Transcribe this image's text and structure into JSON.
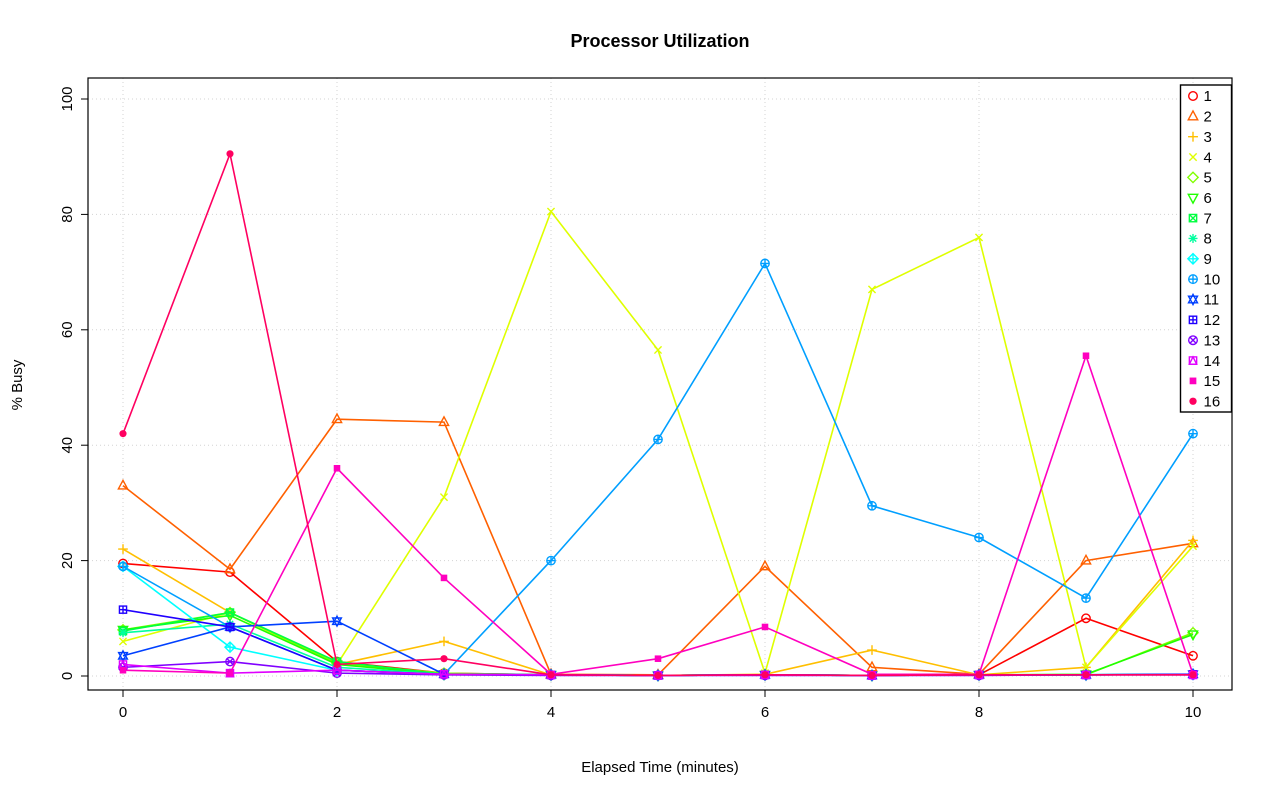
{
  "page": {
    "background": "#FFFFFF"
  },
  "chart_data": {
    "type": "line",
    "title": "Processor Utilization",
    "xlabel": "Elapsed Time (minutes)",
    "ylabel": "% Busy",
    "x": [
      0,
      1,
      2,
      3,
      4,
      5,
      6,
      7,
      8,
      9,
      10
    ],
    "xticks": [
      0,
      2,
      4,
      6,
      8,
      10
    ],
    "yticks": [
      0,
      20,
      40,
      60,
      80,
      100
    ],
    "xlim": [
      0,
      10
    ],
    "ylim": [
      0,
      100
    ],
    "grid": true,
    "grid_color": "#D3D3D3",
    "legend_position": "top-right",
    "legend_labels": [
      "1",
      "2",
      "3",
      "4",
      "5",
      "6",
      "7",
      "8",
      "9",
      "10",
      "11",
      "12",
      "13",
      "14",
      "15",
      "16"
    ],
    "series": [
      {
        "name": "1",
        "color": "#FF0000",
        "marker": "circle-open",
        "values": [
          19.5,
          18,
          2.5,
          0.5,
          0.2,
          0.1,
          0.2,
          0.1,
          0.2,
          10,
          3.5
        ]
      },
      {
        "name": "2",
        "color": "#FF6000",
        "marker": "triangle-up-open",
        "values": [
          33,
          18.5,
          44.5,
          44,
          0.3,
          0.2,
          19,
          1.5,
          0.3,
          20,
          23
        ]
      },
      {
        "name": "3",
        "color": "#FFBF00",
        "marker": "plus",
        "values": [
          22,
          11,
          2,
          6,
          0.2,
          0.1,
          0.3,
          4.5,
          0.2,
          1.5,
          23.5
        ]
      },
      {
        "name": "4",
        "color": "#DFFF00",
        "marker": "x",
        "values": [
          6,
          11,
          2,
          31,
          80.5,
          56.5,
          0.5,
          67,
          76,
          1.5,
          22.5
        ]
      },
      {
        "name": "5",
        "color": "#80FF00",
        "marker": "diamond-open",
        "values": [
          8,
          11,
          2.2,
          0.5,
          0.2,
          0.1,
          0.2,
          0.1,
          0.2,
          0.2,
          7.5
        ]
      },
      {
        "name": "6",
        "color": "#20FF00",
        "marker": "triangle-down-open",
        "values": [
          8,
          10.5,
          2,
          0.3,
          0.2,
          0.1,
          0.2,
          0.1,
          0.2,
          0.3,
          7.2
        ]
      },
      {
        "name": "7",
        "color": "#00FF40",
        "marker": "square-x",
        "values": [
          7.8,
          11,
          2.5,
          0.3,
          0.2,
          0.1,
          0.2,
          0.1,
          0.2,
          0.2,
          0.3
        ]
      },
      {
        "name": "8",
        "color": "#00FF9F",
        "marker": "asterisk",
        "values": [
          7.5,
          9,
          1.5,
          0.3,
          0.2,
          0.1,
          0.2,
          0.1,
          0.2,
          0.2,
          0.3
        ]
      },
      {
        "name": "9",
        "color": "#00FFFF",
        "marker": "diamond-plus",
        "values": [
          19,
          5,
          1,
          0.3,
          0.2,
          0.1,
          0.2,
          0.1,
          0.2,
          0.2,
          0.3
        ]
      },
      {
        "name": "10",
        "color": "#009FFF",
        "marker": "circle-plus",
        "values": [
          19,
          8.5,
          1,
          0.3,
          20,
          41,
          71.5,
          29.5,
          24,
          13.5,
          42
        ]
      },
      {
        "name": "11",
        "color": "#0040FF",
        "marker": "triangle-up-down",
        "values": [
          3.5,
          8.5,
          9.5,
          0.3,
          0.2,
          0.1,
          0.2,
          0.1,
          0.2,
          0.2,
          0.3
        ]
      },
      {
        "name": "12",
        "color": "#2000FF",
        "marker": "square-plus",
        "values": [
          11.5,
          8.5,
          1,
          0.3,
          0.2,
          0.1,
          0.2,
          0.1,
          0.2,
          0.2,
          0.3
        ]
      },
      {
        "name": "13",
        "color": "#8000FF",
        "marker": "circle-x",
        "values": [
          1.5,
          2.5,
          0.5,
          0.2,
          0.1,
          0.1,
          0.1,
          0.1,
          0.1,
          0.2,
          0.2
        ]
      },
      {
        "name": "14",
        "color": "#DF00FF",
        "marker": "square-triangle",
        "values": [
          2,
          0.5,
          1,
          0.3,
          0.2,
          0.1,
          0.2,
          0.1,
          0.2,
          0.2,
          0.2
        ]
      },
      {
        "name": "15",
        "color": "#FF00BF",
        "marker": "square-filled",
        "values": [
          1,
          0.5,
          36,
          17,
          0.3,
          3,
          8.5,
          0.3,
          0.3,
          55.5,
          0.3
        ]
      },
      {
        "name": "16",
        "color": "#FF0060",
        "marker": "circle-filled",
        "values": [
          42,
          90.5,
          2,
          3,
          0.2,
          0.1,
          0.2,
          0.1,
          0.2,
          0.2,
          0.2
        ]
      }
    ]
  }
}
